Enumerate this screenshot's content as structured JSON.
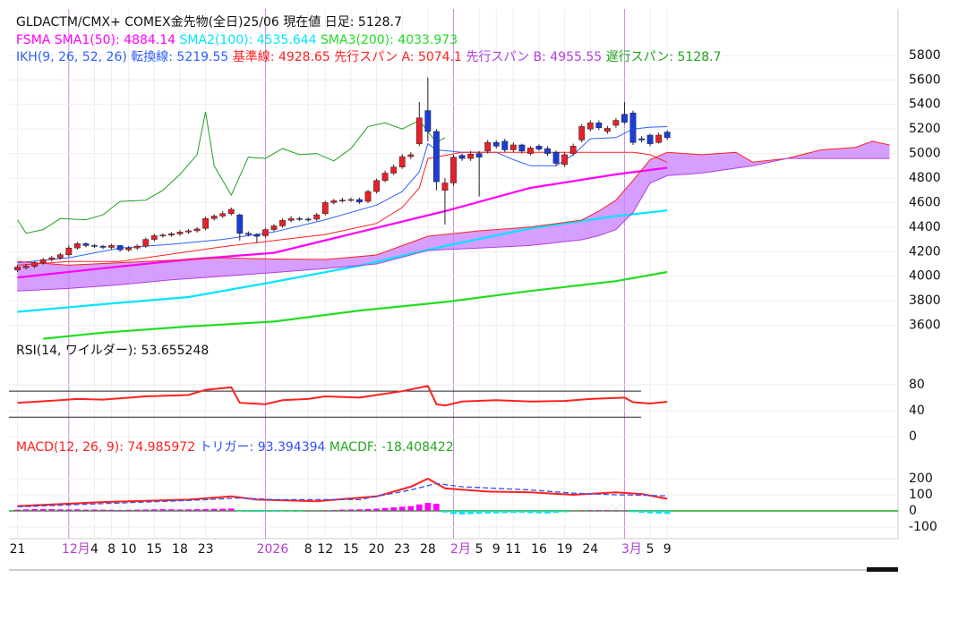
{
  "chart_data": [
    {
      "type": "candlestick",
      "title": "GLDACTM/CMX+ COMEX金先物(全日)25/06 現在値 日足: 5128.7",
      "up_color": "#e8202a",
      "down_color": "#1a3cd8",
      "open": [
        4050,
        4070,
        4080,
        4110,
        4135,
        4150,
        4175,
        4230,
        4265,
        4250,
        4245,
        4235,
        4250,
        4215,
        4230,
        4245,
        4300,
        4330,
        4335,
        4345,
        4360,
        4370,
        4390,
        4470,
        4490,
        4510,
        4500,
        4350,
        4340,
        4330,
        4380,
        4410,
        4455,
        4470,
        4465,
        4465,
        4510,
        4600,
        4615,
        4620,
        4625,
        4610,
        4690,
        4780,
        4840,
        4890,
        4975,
        5080,
        5350,
        5180,
        4700,
        4760,
        4985,
        4960,
        5000,
        5020,
        5090,
        5100,
        5030,
        5070,
        5000,
        5060,
        5040,
        5010,
        4910,
        5000,
        5110,
        5200,
        5250,
        5180,
        5230,
        5320,
        5330,
        5120,
        5150,
        5090,
        5175
      ],
      "high": [
        4090,
        4100,
        4125,
        4150,
        4165,
        4190,
        4250,
        4280,
        4275,
        4260,
        4255,
        4265,
        4255,
        4245,
        4260,
        4315,
        4345,
        4350,
        4360,
        4375,
        4385,
        4400,
        4485,
        4505,
        4530,
        4560,
        4510,
        4365,
        4350,
        4395,
        4425,
        4470,
        4490,
        4485,
        4480,
        4515,
        4615,
        4630,
        4640,
        4640,
        4640,
        4705,
        4795,
        4860,
        4910,
        4995,
        5010,
        5420,
        5620,
        5200,
        4800,
        4990,
        5000,
        5020,
        5020,
        5110,
        5110,
        5120,
        5090,
        5080,
        5060,
        5075,
        5060,
        5025,
        5010,
        5080,
        5240,
        5270,
        5270,
        5225,
        5290,
        5420,
        5350,
        5140,
        5160,
        5170,
        5190
      ],
      "low": [
        4035,
        4055,
        4065,
        4095,
        4120,
        4135,
        4160,
        4215,
        4235,
        4230,
        4220,
        4220,
        4200,
        4200,
        4215,
        4230,
        4285,
        4315,
        4320,
        4330,
        4345,
        4355,
        4375,
        4455,
        4475,
        4495,
        4290,
        4325,
        4270,
        4315,
        4365,
        4395,
        4440,
        4450,
        4445,
        4450,
        4495,
        4585,
        4600,
        4605,
        4590,
        4595,
        4675,
        4765,
        4825,
        4875,
        4955,
        5060,
        5100,
        4700,
        4420,
        4740,
        4940,
        4940,
        4650,
        5000,
        5040,
        5010,
        5010,
        5000,
        4985,
        5020,
        4980,
        4900,
        4890,
        4980,
        5090,
        5180,
        5190,
        5160,
        5210,
        5240,
        5070,
        5090,
        5060,
        5080,
        5110
      ],
      "close": [
        4075,
        4082,
        4110,
        4135,
        4150,
        4175,
        4230,
        4265,
        4250,
        4245,
        4235,
        4250,
        4215,
        4230,
        4245,
        4300,
        4330,
        4335,
        4345,
        4360,
        4370,
        4385,
        4470,
        4490,
        4510,
        4545,
        4350,
        4340,
        4325,
        4380,
        4410,
        4455,
        4470,
        4465,
        4462,
        4500,
        4600,
        4615,
        4620,
        4625,
        4605,
        4690,
        4780,
        4840,
        4890,
        4975,
        4990,
        5290,
        5180,
        4770,
        4760,
        4970,
        4960,
        4995,
        4970,
        5090,
        5060,
        5030,
        5070,
        5020,
        5045,
        5035,
        5000,
        4920,
        4990,
        5060,
        5220,
        5250,
        5210,
        5205,
        5270,
        5255,
        5090,
        5110,
        5080,
        5150,
        5128.7
      ],
      "sma_series": [
        {
          "name": "FSMA SMA1(50): 4884.14",
          "color": "#ff00ff",
          "x": [
            0,
            10,
            20,
            30,
            40,
            50,
            60,
            70,
            76
          ],
          "values": [
            3990,
            4065,
            4136,
            4190,
            4360,
            4530,
            4720,
            4830,
            4884.14
          ]
        },
        {
          "name": "SMA2(100): 4535.644",
          "color": "#00e5ff",
          "x": [
            0,
            10,
            20,
            30,
            40,
            50,
            60,
            70,
            76
          ],
          "values": [
            3710,
            3772,
            3830,
            3954,
            4085,
            4246,
            4390,
            4490,
            4535.644
          ]
        },
        {
          "name": "SMA3(200): 4033.973",
          "color": "#22dd22",
          "x": [
            3,
            10,
            20,
            30,
            40,
            50,
            60,
            70,
            76
          ],
          "values": [
            3490,
            3540,
            3590,
            3630,
            3720,
            3790,
            3880,
            3960,
            4033.973
          ]
        }
      ],
      "ichimoku_series": [
        {
          "name": "IKH(9, 26, 52, 26) 転換線: 5219.55",
          "color": "#3060ff",
          "x": [
            0,
            6,
            12,
            18,
            24,
            27,
            30,
            36,
            42,
            45,
            47,
            48,
            49,
            52,
            56,
            58,
            60,
            63,
            65,
            67,
            70,
            72,
            74,
            76
          ],
          "values": [
            4110,
            4150,
            4230,
            4260,
            4300,
            4330,
            4360,
            4460,
            4580,
            4690,
            4850,
            5080,
            5030,
            5010,
            5010,
            4950,
            4900,
            4900,
            4990,
            5120,
            5130,
            5200,
            5215,
            5219.55
          ]
        },
        {
          "name": "基準線: 4928.65",
          "color": "#ff2020",
          "x": [
            0,
            6,
            12,
            18,
            24,
            30,
            36,
            42,
            45,
            47,
            48,
            52,
            60,
            70,
            72,
            74,
            76
          ],
          "values": [
            4090,
            4120,
            4120,
            4180,
            4240,
            4290,
            4340,
            4430,
            4560,
            4720,
            4960,
            5010,
            5010,
            5010,
            5010,
            4990,
            4928.65
          ]
        },
        {
          "name": "先行スパン A: 5074.1",
          "color": "#ff2020",
          "x": [
            0,
            6,
            12,
            18,
            24,
            30,
            36,
            42,
            48,
            54,
            60,
            66,
            68,
            70,
            72,
            74,
            76,
            80,
            84,
            86,
            90,
            94,
            98,
            100,
            102
          ],
          "values": [
            4120,
            4090,
            4110,
            4130,
            4150,
            4140,
            4136,
            4173,
            4326,
            4370,
            4400,
            4457,
            4530,
            4620,
            4780,
            4950,
            5010,
            4990,
            5010,
            4930,
            4960,
            5030,
            5050,
            5100,
            5070
          ]
        },
        {
          "name": "先行スパン B: 4955.55",
          "color": "#b040e0",
          "x": [
            0,
            6,
            12,
            18,
            24,
            30,
            36,
            42,
            48,
            54,
            60,
            66,
            68,
            70,
            72,
            74,
            76,
            80,
            84,
            86,
            90,
            94,
            98,
            100,
            102
          ],
          "values": [
            3880,
            3900,
            3930,
            3970,
            4000,
            4030,
            4063,
            4100,
            4210,
            4230,
            4250,
            4297,
            4330,
            4380,
            4520,
            4760,
            4820,
            4840,
            4880,
            4900,
            4960,
            4960,
            4960,
            4960,
            4960
          ]
        },
        {
          "name": "遅行スパン: 5128.7",
          "color": "#20a020",
          "x": [
            0,
            1,
            3,
            5,
            8,
            10,
            12,
            15,
            17,
            19,
            21,
            22,
            23,
            25,
            27,
            29,
            31,
            33,
            35,
            37,
            39,
            41,
            43,
            45,
            47,
            49,
            50
          ],
          "values": [
            4460,
            4350,
            4380,
            4470,
            4460,
            4500,
            4610,
            4620,
            4700,
            4830,
            4990,
            5340,
            4900,
            4660,
            4970,
            4960,
            5040,
            4990,
            5000,
            4940,
            5040,
            5220,
            5250,
            5200,
            5270,
            5090,
            5128.7
          ]
        }
      ],
      "cloud_color": "#c77dff",
      "ylim": [
        3480,
        6120
      ],
      "yticks": [
        3600,
        3800,
        4000,
        4200,
        4400,
        4600,
        4800,
        5000,
        5200,
        5400,
        5600,
        5800
      ],
      "grid": true
    },
    {
      "type": "line",
      "title": "RSI(14, ワイルダー): 53.655248",
      "series": [
        {
          "color": "#ff2020",
          "x": [
            0,
            5,
            7,
            10,
            15,
            20,
            22,
            25,
            26,
            29,
            31,
            34,
            36,
            40,
            42,
            45,
            48,
            49,
            50,
            52,
            56,
            60,
            64,
            67,
            71,
            72,
            74,
            76
          ],
          "values": [
            52,
            56,
            58,
            57,
            62,
            64,
            72,
            76,
            52,
            50,
            56,
            58,
            62,
            60,
            64,
            70,
            78,
            50,
            48,
            54,
            56,
            54,
            55,
            58,
            60,
            53,
            51,
            53.655248
          ]
        }
      ],
      "levels": [
        70,
        30
      ],
      "ylim": [
        0,
        146
      ],
      "yticks": [
        0,
        40,
        80
      ],
      "grid": true
    },
    {
      "type": "macd",
      "series": [
        {
          "name": "MACD(12, 26, 9): 74.985972",
          "color": "#ff2020",
          "x": [
            0,
            10,
            20,
            25,
            28,
            35,
            42,
            46,
            48,
            50,
            55,
            60,
            65,
            70,
            73,
            76
          ],
          "values": [
            30,
            55,
            70,
            90,
            70,
            60,
            90,
            150,
            200,
            140,
            120,
            115,
            100,
            115,
            105,
            74.985972
          ]
        },
        {
          "name": "トリガー: 93.394394",
          "color": "#3050ff",
          "dashed": true,
          "x": [
            0,
            10,
            20,
            26,
            30,
            40,
            46,
            49,
            52,
            60,
            65,
            70,
            76
          ],
          "values": [
            25,
            45,
            65,
            80,
            70,
            70,
            130,
            170,
            150,
            130,
            110,
            100,
            93.394394
          ]
        }
      ],
      "histogram": {
        "name": "MACDF: -18.408422",
        "color": "#22aa22",
        "pos_color": "#ff00ff",
        "neg_color": "#00e5ff",
        "values": [
          8,
          10,
          12,
          12,
          11,
          10,
          9,
          10,
          8,
          9,
          8,
          7,
          6,
          7,
          8,
          9,
          10,
          11,
          10,
          9,
          10,
          11,
          12,
          13,
          14,
          15,
          -3,
          -5,
          -6,
          -5,
          -4,
          -3,
          -2,
          -1,
          0,
          2,
          4,
          6,
          8,
          9,
          10,
          12,
          14,
          18,
          22,
          26,
          30,
          40,
          50,
          45,
          -10,
          -20,
          -22,
          -20,
          -18,
          -16,
          -15,
          -14,
          -13,
          -12,
          -14,
          -15,
          -16,
          -12,
          -8,
          2,
          4,
          5,
          6,
          6,
          5,
          4,
          -8,
          -12,
          -15,
          -17,
          -18.408422
        ]
      },
      "ylim": [
        -161,
        450
      ],
      "yticks": [
        -100,
        0,
        100,
        200
      ],
      "grid": true,
      "xlim": [
        -1,
        103
      ],
      "xticks": [
        {
          "value": 0,
          "label": "21"
        },
        {
          "value": 6,
          "label": "12月"
        },
        {
          "value": 9,
          "label": "4"
        },
        {
          "value": 11,
          "label": "8"
        },
        {
          "value": 13,
          "label": "10"
        },
        {
          "value": 16,
          "label": "15"
        },
        {
          "value": 19,
          "label": "18"
        },
        {
          "value": 22,
          "label": "23"
        },
        {
          "value": 29,
          "label": "2026"
        },
        {
          "value": 34,
          "label": "8"
        },
        {
          "value": 36,
          "label": "12"
        },
        {
          "value": 39,
          "label": "15"
        },
        {
          "value": 42,
          "label": "20"
        },
        {
          "value": 45,
          "label": "23"
        },
        {
          "value": 48,
          "label": "28"
        },
        {
          "value": 51,
          "label": "2月"
        },
        {
          "value": 54,
          "label": "5"
        },
        {
          "value": 56,
          "label": "9"
        },
        {
          "value": 58,
          "label": "11"
        },
        {
          "value": 61,
          "label": "16"
        },
        {
          "value": 64,
          "label": "19"
        },
        {
          "value": 67,
          "label": "24"
        },
        {
          "value": 71,
          "label": "3月"
        },
        {
          "value": 74,
          "label": "5"
        },
        {
          "value": 76,
          "label": "9"
        }
      ],
      "month_ticks": [
        1,
        8,
        15,
        22
      ],
      "month_color": "#b040d0"
    }
  ]
}
